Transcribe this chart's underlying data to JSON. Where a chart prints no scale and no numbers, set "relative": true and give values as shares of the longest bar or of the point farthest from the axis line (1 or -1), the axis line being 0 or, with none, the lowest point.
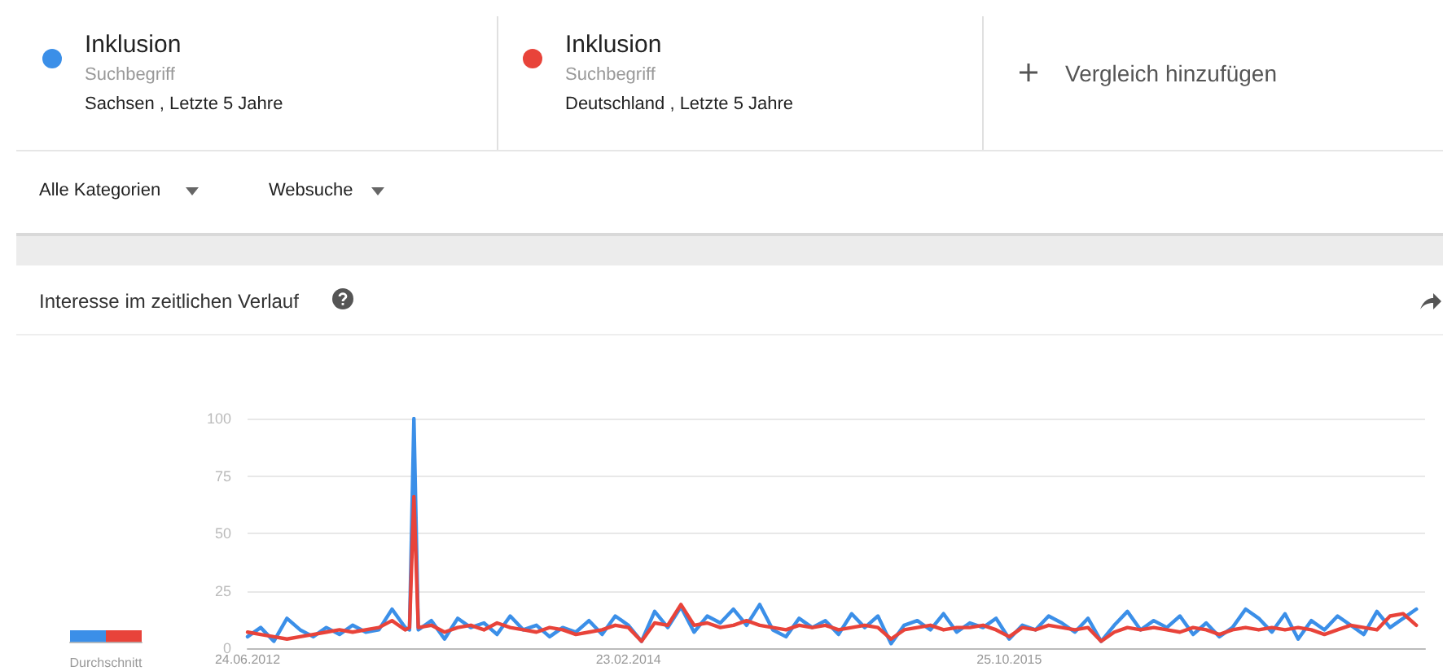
{
  "chart_data": [
    {
      "type": "bar",
      "xlabel": "Durchschnitt",
      "categories": [
        null,
        null
      ],
      "relative": true,
      "colors": [
        "#3b8fe8",
        "#e8433a"
      ],
      "values": [
        1,
        1
      ]
    },
    {
      "type": "line",
      "title": "Interesse im zeitlichen Verlauf",
      "legend": "top",
      "grid": "y",
      "marker": "none",
      "line_style": "solid",
      "annotations": [
        "Suchbegriff",
        "Sachsen , Letzte 5 Jahre",
        "Suchbegriff",
        "Deutschland , Letzte 5 Jahre",
        "Vergleich hinzufügen",
        "Alle Kategorien",
        "Websuche"
      ],
      "x": [
        "2012-06-24",
        "2012-07-15",
        "2012-08-05",
        "2012-08-26",
        "2012-09-16",
        "2012-10-07",
        "2012-10-28",
        "2012-11-18",
        "2012-12-09",
        "2012-12-30",
        "2013-01-20",
        "2013-02-10",
        "2013-03-03",
        "2013-03-10",
        "2013-03-17",
        "2013-03-24",
        "2013-04-14",
        "2013-05-05",
        "2013-05-26",
        "2013-06-16",
        "2013-07-07",
        "2013-07-28",
        "2013-08-18",
        "2013-09-08",
        "2013-09-29",
        "2013-10-20",
        "2013-11-10",
        "2013-12-01",
        "2013-12-22",
        "2014-01-12",
        "2014-02-02",
        "2014-02-23",
        "2014-03-16",
        "2014-04-06",
        "2014-04-27",
        "2014-05-18",
        "2014-06-08",
        "2014-06-29",
        "2014-07-20",
        "2014-08-10",
        "2014-08-31",
        "2014-09-21",
        "2014-10-12",
        "2014-11-02",
        "2014-11-23",
        "2014-12-14",
        "2015-01-04",
        "2015-01-25",
        "2015-02-15",
        "2015-03-08",
        "2015-03-29",
        "2015-04-19",
        "2015-05-10",
        "2015-05-31",
        "2015-06-21",
        "2015-07-12",
        "2015-08-02",
        "2015-08-23",
        "2015-09-13",
        "2015-10-04",
        "2015-10-25",
        "2015-11-15",
        "2015-12-06",
        "2015-12-27",
        "2016-01-17",
        "2016-02-07",
        "2016-02-28",
        "2016-03-20",
        "2016-04-10",
        "2016-05-01",
        "2016-05-22",
        "2016-06-12",
        "2016-07-03",
        "2016-07-24",
        "2016-08-14",
        "2016-09-04",
        "2016-09-25",
        "2016-10-16",
        "2016-11-06",
        "2016-11-27",
        "2016-12-18",
        "2017-01-08",
        "2017-01-29",
        "2017-02-19",
        "2017-03-12",
        "2017-04-02",
        "2017-04-23",
        "2017-05-14",
        "2017-06-04",
        "2017-06-25",
        "2017-07-16",
        "2017-08-06"
      ],
      "xlim": [
        "2012-06-24",
        "2017-08-20"
      ],
      "xticks": [
        {
          "value": "2012-06-24",
          "label": "24.06.2012"
        },
        {
          "value": "2014-02-23",
          "label": "23.02.2014"
        },
        {
          "value": "2015-10-25",
          "label": "25.10.2015"
        }
      ],
      "ylim": [
        0,
        100
      ],
      "yticks": [
        0,
        25,
        50,
        75,
        100
      ],
      "series": [
        {
          "name": "Inklusion",
          "color": "#3b8fe8",
          "values": [
            5,
            9,
            3,
            13,
            8,
            5,
            9,
            6,
            10,
            7,
            8,
            17,
            9,
            8,
            100,
            8,
            12,
            4,
            13,
            9,
            11,
            6,
            14,
            8,
            10,
            5,
            9,
            7,
            12,
            6,
            14,
            10,
            3,
            16,
            9,
            18,
            7,
            14,
            11,
            17,
            10,
            19,
            8,
            5,
            13,
            9,
            12,
            6,
            15,
            9,
            14,
            2,
            10,
            12,
            8,
            15,
            7,
            11,
            9,
            13,
            4,
            10,
            8,
            14,
            11,
            7,
            13,
            3,
            10,
            16,
            8,
            12,
            9,
            14,
            6,
            11,
            5,
            9,
            17,
            13,
            7,
            15,
            4,
            12,
            8,
            14,
            10,
            6,
            16,
            9,
            13,
            17
          ]
        },
        {
          "name": "Inklusion",
          "color": "#e8433a",
          "values": [
            7,
            6,
            5,
            4,
            5,
            6,
            7,
            8,
            7,
            8,
            9,
            12,
            8,
            9,
            66,
            9,
            10,
            7,
            9,
            10,
            8,
            11,
            9,
            8,
            7,
            9,
            8,
            6,
            7,
            8,
            10,
            9,
            3,
            11,
            10,
            19,
            10,
            11,
            9,
            10,
            12,
            10,
            9,
            8,
            10,
            9,
            10,
            8,
            9,
            10,
            9,
            4,
            8,
            9,
            10,
            8,
            9,
            9,
            10,
            8,
            5,
            9,
            8,
            10,
            9,
            8,
            9,
            3,
            7,
            9,
            8,
            9,
            8,
            7,
            9,
            8,
            6,
            8,
            9,
            8,
            9,
            8,
            9,
            8,
            6,
            8,
            10,
            9,
            8,
            14,
            15,
            10
          ]
        }
      ]
    }
  ]
}
